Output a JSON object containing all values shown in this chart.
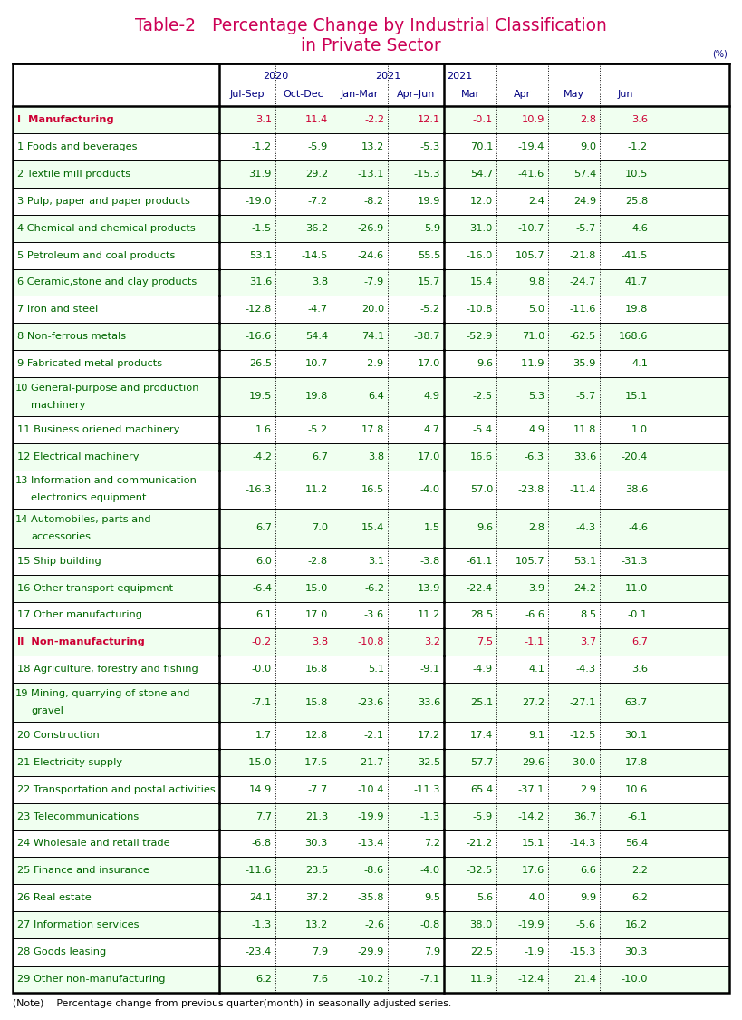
{
  "title_line1": "Table-2   Percentage Change by Industrial Classification",
  "title_line2": "in Private Sector",
  "title_color": "#cc0055",
  "unit_label": "(%)",
  "note": "(Note)    Percentage change from previous quarter(month) in seasonally adjusted series.",
  "rows": [
    {
      "label_num": "Ⅰ",
      "label_text": "  Manufacturing",
      "multiline": false,
      "label_color": "#cc0033",
      "bold": true,
      "num_color": "#cc0033",
      "values": [
        "3.1",
        "11.4",
        "-2.2",
        "12.1",
        "-0.1",
        "10.9",
        "2.8",
        "3.6"
      ]
    },
    {
      "label_num": "1",
      "label_text": " Foods and beverages",
      "multiline": false,
      "label_color": "#006600",
      "bold": false,
      "num_color": "#006600",
      "values": [
        "-1.2",
        "-5.9",
        "13.2",
        "-5.3",
        "70.1",
        "-19.4",
        "9.0",
        "-1.2"
      ]
    },
    {
      "label_num": "2",
      "label_text": " Textile mill products",
      "multiline": false,
      "label_color": "#006600",
      "bold": false,
      "num_color": "#006600",
      "values": [
        "31.9",
        "29.2",
        "-13.1",
        "-15.3",
        "54.7",
        "-41.6",
        "57.4",
        "10.5"
      ]
    },
    {
      "label_num": "3",
      "label_text": " Pulp, paper and paper products",
      "multiline": false,
      "label_color": "#006600",
      "bold": false,
      "num_color": "#006600",
      "values": [
        "-19.0",
        "-7.2",
        "-8.2",
        "19.9",
        "12.0",
        "2.4",
        "24.9",
        "25.8"
      ]
    },
    {
      "label_num": "4",
      "label_text": " Chemical and chemical products",
      "multiline": false,
      "label_color": "#006600",
      "bold": false,
      "num_color": "#006600",
      "values": [
        "-1.5",
        "36.2",
        "-26.9",
        "5.9",
        "31.0",
        "-10.7",
        "-5.7",
        "4.6"
      ]
    },
    {
      "label_num": "5",
      "label_text": " Petroleum and coal products",
      "multiline": false,
      "label_color": "#006600",
      "bold": false,
      "num_color": "#006600",
      "values": [
        "53.1",
        "-14.5",
        "-24.6",
        "55.5",
        "-16.0",
        "105.7",
        "-21.8",
        "-41.5"
      ]
    },
    {
      "label_num": "6",
      "label_text": " Ceramic,stone and clay products",
      "multiline": false,
      "label_color": "#006600",
      "bold": false,
      "num_color": "#006600",
      "values": [
        "31.6",
        "3.8",
        "-7.9",
        "15.7",
        "15.4",
        "9.8",
        "-24.7",
        "41.7"
      ]
    },
    {
      "label_num": "7",
      "label_text": " Iron and steel",
      "multiline": false,
      "label_color": "#006600",
      "bold": false,
      "num_color": "#006600",
      "values": [
        "-12.8",
        "-4.7",
        "20.0",
        "-5.2",
        "-10.8",
        "5.0",
        "-11.6",
        "19.8"
      ]
    },
    {
      "label_num": "8",
      "label_text": " Non-ferrous metals",
      "multiline": false,
      "label_color": "#006600",
      "bold": false,
      "num_color": "#006600",
      "values": [
        "-16.6",
        "54.4",
        "74.1",
        "-38.7",
        "-52.9",
        "71.0",
        "-62.5",
        "168.6"
      ]
    },
    {
      "label_num": "9",
      "label_text": " Fabricated metal products",
      "multiline": false,
      "label_color": "#006600",
      "bold": false,
      "num_color": "#006600",
      "values": [
        "26.5",
        "10.7",
        "-2.9",
        "17.0",
        "9.6",
        "-11.9",
        "35.9",
        "4.1"
      ]
    },
    {
      "label_num": "10",
      "label_text": "General-purpose and production\nmachinery",
      "multiline": true,
      "label_color": "#006600",
      "bold": false,
      "num_color": "#006600",
      "values": [
        "19.5",
        "19.8",
        "6.4",
        "4.9",
        "-2.5",
        "5.3",
        "-5.7",
        "15.1"
      ]
    },
    {
      "label_num": "11",
      "label_text": " Business oriened machinery",
      "multiline": false,
      "label_color": "#006600",
      "bold": false,
      "num_color": "#006600",
      "values": [
        "1.6",
        "-5.2",
        "17.8",
        "4.7",
        "-5.4",
        "4.9",
        "11.8",
        "1.0"
      ]
    },
    {
      "label_num": "12",
      "label_text": " Electrical machinery",
      "multiline": false,
      "label_color": "#006600",
      "bold": false,
      "num_color": "#006600",
      "values": [
        "-4.2",
        "6.7",
        "3.8",
        "17.0",
        "16.6",
        "-6.3",
        "33.6",
        "-20.4"
      ]
    },
    {
      "label_num": "13",
      "label_text": "Information and communication\nelectronics equipment",
      "multiline": true,
      "label_color": "#006600",
      "bold": false,
      "num_color": "#006600",
      "values": [
        "-16.3",
        "11.2",
        "16.5",
        "-4.0",
        "57.0",
        "-23.8",
        "-11.4",
        "38.6"
      ]
    },
    {
      "label_num": "14",
      "label_text": "Automobiles, parts and\naccessories",
      "multiline": true,
      "label_color": "#006600",
      "bold": false,
      "num_color": "#006600",
      "values": [
        "6.7",
        "7.0",
        "15.4",
        "1.5",
        "9.6",
        "2.8",
        "-4.3",
        "-4.6"
      ]
    },
    {
      "label_num": "15",
      "label_text": " Ship building",
      "multiline": false,
      "label_color": "#006600",
      "bold": false,
      "num_color": "#006600",
      "values": [
        "6.0",
        "-2.8",
        "3.1",
        "-3.8",
        "-61.1",
        "105.7",
        "53.1",
        "-31.3"
      ]
    },
    {
      "label_num": "16",
      "label_text": " Other transport equipment",
      "multiline": false,
      "label_color": "#006600",
      "bold": false,
      "num_color": "#006600",
      "values": [
        "-6.4",
        "15.0",
        "-6.2",
        "13.9",
        "-22.4",
        "3.9",
        "24.2",
        "11.0"
      ]
    },
    {
      "label_num": "17",
      "label_text": " Other manufacturing",
      "multiline": false,
      "label_color": "#006600",
      "bold": false,
      "num_color": "#006600",
      "values": [
        "6.1",
        "17.0",
        "-3.6",
        "11.2",
        "28.5",
        "-6.6",
        "8.5",
        "-0.1"
      ]
    },
    {
      "label_num": "Ⅱ",
      "label_text": "  Non-manufacturing",
      "multiline": false,
      "label_color": "#cc0033",
      "bold": true,
      "num_color": "#cc0033",
      "values": [
        "-0.2",
        "3.8",
        "-10.8",
        "3.2",
        "7.5",
        "-1.1",
        "3.7",
        "6.7"
      ]
    },
    {
      "label_num": "18",
      "label_text": " Agriculture, forestry and fishing",
      "multiline": false,
      "label_color": "#006600",
      "bold": false,
      "num_color": "#006600",
      "values": [
        "-0.0",
        "16.8",
        "5.1",
        "-9.1",
        "-4.9",
        "4.1",
        "-4.3",
        "3.6"
      ]
    },
    {
      "label_num": "19",
      "label_text": "Mining, quarrying of stone and\ngravel",
      "multiline": true,
      "label_color": "#006600",
      "bold": false,
      "num_color": "#006600",
      "values": [
        "-7.1",
        "15.8",
        "-23.6",
        "33.6",
        "25.1",
        "27.2",
        "-27.1",
        "63.7"
      ]
    },
    {
      "label_num": "20",
      "label_text": " Construction",
      "multiline": false,
      "label_color": "#006600",
      "bold": false,
      "num_color": "#006600",
      "values": [
        "1.7",
        "12.8",
        "-2.1",
        "17.2",
        "17.4",
        "9.1",
        "-12.5",
        "30.1"
      ]
    },
    {
      "label_num": "21",
      "label_text": " Electricity supply",
      "multiline": false,
      "label_color": "#006600",
      "bold": false,
      "num_color": "#006600",
      "values": [
        "-15.0",
        "-17.5",
        "-21.7",
        "32.5",
        "57.7",
        "29.6",
        "-30.0",
        "17.8"
      ]
    },
    {
      "label_num": "22",
      "label_text": " Transportation and postal activities",
      "multiline": false,
      "label_color": "#006600",
      "bold": false,
      "num_color": "#006600",
      "values": [
        "14.9",
        "-7.7",
        "-10.4",
        "-11.3",
        "65.4",
        "-37.1",
        "2.9",
        "10.6"
      ]
    },
    {
      "label_num": "23",
      "label_text": " Telecommunications",
      "multiline": false,
      "label_color": "#006600",
      "bold": false,
      "num_color": "#006600",
      "values": [
        "7.7",
        "21.3",
        "-19.9",
        "-1.3",
        "-5.9",
        "-14.2",
        "36.7",
        "-6.1"
      ]
    },
    {
      "label_num": "24",
      "label_text": " Wholesale and retail trade",
      "multiline": false,
      "label_color": "#006600",
      "bold": false,
      "num_color": "#006600",
      "values": [
        "-6.8",
        "30.3",
        "-13.4",
        "7.2",
        "-21.2",
        "15.1",
        "-14.3",
        "56.4"
      ]
    },
    {
      "label_num": "25",
      "label_text": " Finance and insurance",
      "multiline": false,
      "label_color": "#006600",
      "bold": false,
      "num_color": "#006600",
      "values": [
        "-11.6",
        "23.5",
        "-8.6",
        "-4.0",
        "-32.5",
        "17.6",
        "6.6",
        "2.2"
      ]
    },
    {
      "label_num": "26",
      "label_text": " Real estate",
      "multiline": false,
      "label_color": "#006600",
      "bold": false,
      "num_color": "#006600",
      "values": [
        "24.1",
        "37.2",
        "-35.8",
        "9.5",
        "5.6",
        "4.0",
        "9.9",
        "6.2"
      ]
    },
    {
      "label_num": "27",
      "label_text": " Information services",
      "multiline": false,
      "label_color": "#006600",
      "bold": false,
      "num_color": "#006600",
      "values": [
        "-1.3",
        "13.2",
        "-2.6",
        "-0.8",
        "38.0",
        "-19.9",
        "-5.6",
        "16.2"
      ]
    },
    {
      "label_num": "28",
      "label_text": " Goods leasing",
      "multiline": false,
      "label_color": "#006600",
      "bold": false,
      "num_color": "#006600",
      "values": [
        "-23.4",
        "7.9",
        "-29.9",
        "7.9",
        "22.5",
        "-1.9",
        "-15.3",
        "30.3"
      ]
    },
    {
      "label_num": "29",
      "label_text": " Other non-manufacturing",
      "multiline": false,
      "label_color": "#006600",
      "bold": false,
      "num_color": "#006600",
      "values": [
        "6.2",
        "7.6",
        "-10.2",
        "-7.1",
        "11.9",
        "-12.4",
        "21.4",
        "-10.0"
      ]
    }
  ],
  "col_header_color": "#000080",
  "background_color": "#ffffff"
}
